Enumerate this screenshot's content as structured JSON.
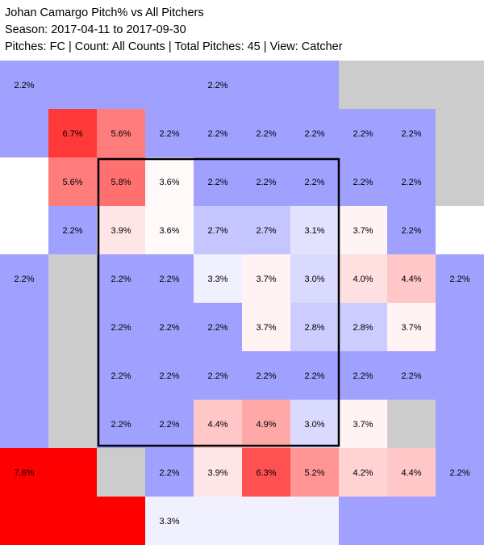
{
  "header": {
    "title": "Johan Camargo Pitch% vs All Pitchers",
    "season": "Season: 2017-04-11 to 2017-09-30",
    "filters": "Pitches: FC | Count: All Counts | Total Pitches: 45 | View: Catcher"
  },
  "chart_data": {
    "type": "heatmap",
    "title": "Johan Camargo Pitch% vs All Pitchers",
    "unit": "%",
    "colors": {
      "low": "#a0a0ff",
      "mid": "#ffffff",
      "high": "#ff0000",
      "no_data": "#cccccc"
    },
    "color_scale_mid": 3.5,
    "color_scale_max": 7.6,
    "strike_zone": {
      "rows": [
        2,
        8
      ],
      "cols": [
        2,
        7
      ]
    },
    "cells": [
      {
        "r": 0,
        "c": 0,
        "rs": 2,
        "cs": 4,
        "v": 2.2,
        "label": "2.2%"
      },
      {
        "r": 0,
        "c": 4,
        "rs": 2,
        "cs": 3,
        "v": 2.2,
        "label": "2.2%"
      },
      {
        "r": 0,
        "c": 7,
        "rs": 1,
        "cs": 3,
        "v": null,
        "label": ""
      },
      {
        "r": 1,
        "c": 1,
        "v": 6.7,
        "label": "6.7%"
      },
      {
        "r": 1,
        "c": 2,
        "v": 5.6,
        "label": "5.6%"
      },
      {
        "r": 1,
        "c": 3,
        "v": 2.2,
        "label": "2.2%"
      },
      {
        "r": 1,
        "c": 4,
        "v": 2.2,
        "label": "2.2%"
      },
      {
        "r": 1,
        "c": 5,
        "v": 2.2,
        "label": "2.2%"
      },
      {
        "r": 1,
        "c": 6,
        "v": 2.2,
        "label": "2.2%"
      },
      {
        "r": 1,
        "c": 7,
        "v": 2.2,
        "label": "2.2%"
      },
      {
        "r": 1,
        "c": 8,
        "v": 2.2,
        "label": "2.2%"
      },
      {
        "r": 1,
        "c": 9,
        "rs": 2,
        "cs": 1,
        "v": null,
        "label": ""
      },
      {
        "r": 2,
        "c": 1,
        "v": 5.6,
        "label": "5.6%"
      },
      {
        "r": 2,
        "c": 2,
        "v": 5.8,
        "label": "5.8%"
      },
      {
        "r": 2,
        "c": 3,
        "v": 3.6,
        "label": "3.6%"
      },
      {
        "r": 2,
        "c": 4,
        "v": 2.2,
        "label": "2.2%"
      },
      {
        "r": 2,
        "c": 5,
        "v": 2.2,
        "label": "2.2%"
      },
      {
        "r": 2,
        "c": 6,
        "v": 2.2,
        "label": "2.2%"
      },
      {
        "r": 2,
        "c": 7,
        "v": 2.2,
        "label": "2.2%"
      },
      {
        "r": 2,
        "c": 8,
        "v": 2.2,
        "label": "2.2%"
      },
      {
        "r": 3,
        "c": 1,
        "v": 2.2,
        "label": "2.2%"
      },
      {
        "r": 3,
        "c": 2,
        "v": 3.9,
        "label": "3.9%"
      },
      {
        "r": 3,
        "c": 3,
        "v": 3.6,
        "label": "3.6%"
      },
      {
        "r": 3,
        "c": 4,
        "v": 2.7,
        "label": "2.7%"
      },
      {
        "r": 3,
        "c": 5,
        "v": 2.7,
        "label": "2.7%"
      },
      {
        "r": 3,
        "c": 6,
        "v": 3.1,
        "label": "3.1%"
      },
      {
        "r": 3,
        "c": 7,
        "v": 3.7,
        "label": "3.7%"
      },
      {
        "r": 3,
        "c": 8,
        "v": 2.2,
        "label": "2.2%"
      },
      {
        "r": 4,
        "c": 0,
        "rs": 4,
        "cs": 1,
        "v": 2.2,
        "label": "2.2%"
      },
      {
        "r": 4,
        "c": 1,
        "rs": 6,
        "cs": 1,
        "v": null,
        "label": ""
      },
      {
        "r": 4,
        "c": 2,
        "v": 2.2,
        "label": "2.2%"
      },
      {
        "r": 4,
        "c": 3,
        "v": 2.2,
        "label": "2.2%"
      },
      {
        "r": 4,
        "c": 4,
        "v": 3.3,
        "label": "3.3%"
      },
      {
        "r": 4,
        "c": 5,
        "v": 3.7,
        "label": "3.7%"
      },
      {
        "r": 4,
        "c": 6,
        "v": 3.0,
        "label": "3.0%"
      },
      {
        "r": 4,
        "c": 7,
        "v": 4.0,
        "label": "4.0%"
      },
      {
        "r": 4,
        "c": 8,
        "v": 4.4,
        "label": "4.4%"
      },
      {
        "r": 4,
        "c": 9,
        "rs": 4,
        "cs": 1,
        "v": 2.2,
        "label": "2.2%"
      },
      {
        "r": 5,
        "c": 2,
        "v": 2.2,
        "label": "2.2%"
      },
      {
        "r": 5,
        "c": 3,
        "v": 2.2,
        "label": "2.2%"
      },
      {
        "r": 5,
        "c": 4,
        "v": 2.2,
        "label": "2.2%"
      },
      {
        "r": 5,
        "c": 5,
        "v": 3.7,
        "label": "3.7%"
      },
      {
        "r": 5,
        "c": 6,
        "v": 2.8,
        "label": "2.8%"
      },
      {
        "r": 5,
        "c": 7,
        "v": 2.8,
        "label": "2.8%"
      },
      {
        "r": 5,
        "c": 8,
        "v": 3.7,
        "label": "3.7%"
      },
      {
        "r": 6,
        "c": 2,
        "v": 2.2,
        "label": "2.2%"
      },
      {
        "r": 6,
        "c": 3,
        "v": 2.2,
        "label": "2.2%"
      },
      {
        "r": 6,
        "c": 4,
        "v": 2.2,
        "label": "2.2%"
      },
      {
        "r": 6,
        "c": 5,
        "v": 2.2,
        "label": "2.2%"
      },
      {
        "r": 6,
        "c": 6,
        "v": 2.2,
        "label": "2.2%"
      },
      {
        "r": 6,
        "c": 7,
        "v": 2.2,
        "label": "2.2%"
      },
      {
        "r": 6,
        "c": 8,
        "v": 2.2,
        "label": "2.2%"
      },
      {
        "r": 7,
        "c": 2,
        "v": 2.2,
        "label": "2.2%"
      },
      {
        "r": 7,
        "c": 3,
        "v": 2.2,
        "label": "2.2%"
      },
      {
        "r": 7,
        "c": 4,
        "v": 4.4,
        "label": "4.4%"
      },
      {
        "r": 7,
        "c": 5,
        "v": 4.9,
        "label": "4.9%"
      },
      {
        "r": 7,
        "c": 6,
        "v": 3.0,
        "label": "3.0%"
      },
      {
        "r": 7,
        "c": 7,
        "v": 3.7,
        "label": "3.7%"
      },
      {
        "r": 7,
        "c": 8,
        "v": null,
        "label": ""
      },
      {
        "r": 8,
        "c": 0,
        "rs": 2,
        "cs": 3,
        "v": 7.6,
        "label": "7.6%"
      },
      {
        "r": 8,
        "c": 2,
        "rs": 1,
        "cs": 1,
        "v": null,
        "label": ""
      },
      {
        "r": 8,
        "c": 3,
        "v": 2.2,
        "label": "2.2%"
      },
      {
        "r": 8,
        "c": 4,
        "v": 3.9,
        "label": "3.9%"
      },
      {
        "r": 8,
        "c": 5,
        "v": 6.3,
        "label": "6.3%"
      },
      {
        "r": 8,
        "c": 6,
        "v": 5.2,
        "label": "5.2%"
      },
      {
        "r": 8,
        "c": 7,
        "v": 4.2,
        "label": "4.2%"
      },
      {
        "r": 8,
        "c": 8,
        "v": 4.4,
        "label": "4.4%"
      },
      {
        "r": 8,
        "c": 9,
        "rs": 2,
        "cs": 1,
        "v": 2.2,
        "label": "2.2%"
      },
      {
        "r": 9,
        "c": 3,
        "rs": 1,
        "cs": 4,
        "v": 3.3,
        "label": "3.3%"
      },
      {
        "r": 9,
        "c": 7,
        "rs": 1,
        "cs": 3,
        "v": 2.2,
        "label": ""
      }
    ]
  }
}
